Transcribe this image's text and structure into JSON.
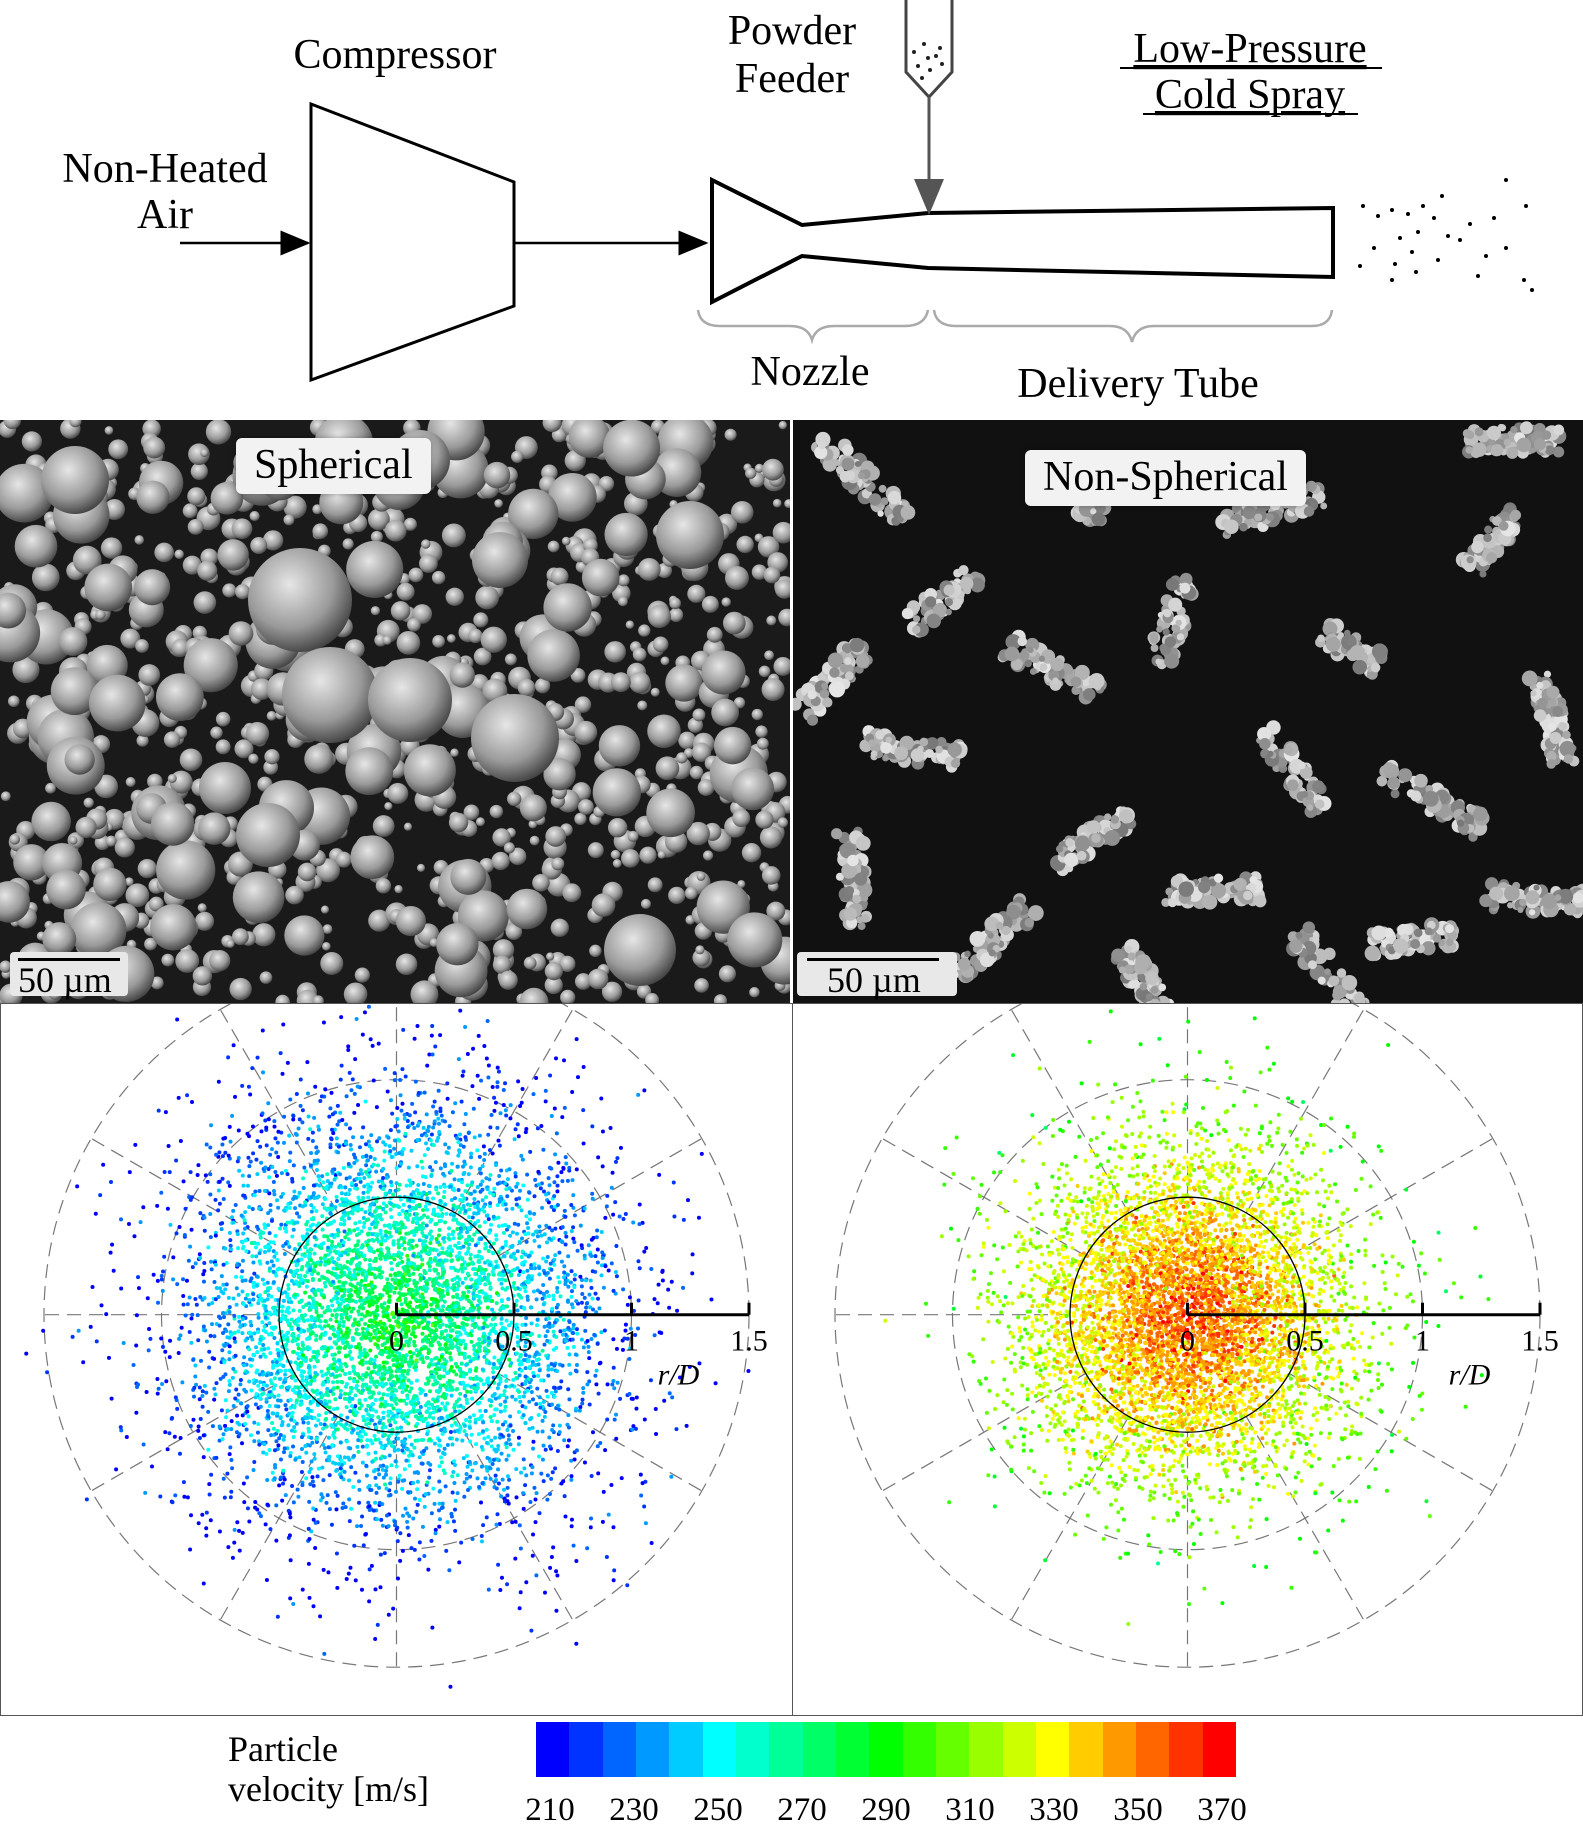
{
  "schematic": {
    "compressor": "Compressor",
    "air_line1": "Non-Heated",
    "air_line2": "Air",
    "feeder_line1": "Powder",
    "feeder_line2": "Feeder",
    "title_line1": "Low-Pressure",
    "title_line2": "Cold Spray",
    "nozzle": "Nozzle",
    "delivery_tube": "Delivery Tube"
  },
  "micrographs": {
    "left": {
      "label": "Spherical",
      "scale": "50 µm"
    },
    "right": {
      "label": "Non-Spherical",
      "scale": "50 µm"
    }
  },
  "chart_data": [
    {
      "type": "scatter",
      "coordinate_system": "polar",
      "xlabel": "r/D",
      "radial_ticks": [
        "0",
        "0.5",
        "1",
        "1.5"
      ],
      "rlim": [
        0,
        1.5
      ],
      "reference_circle_r": 0.5,
      "grid": true,
      "points_color_variable": "Particle velocity [m/s]",
      "distribution": {
        "center": [
          0,
          0
        ],
        "spread_r_D": 0.45,
        "velocity_center": 285,
        "velocity_edge": 215,
        "n_points": 6000
      }
    },
    {
      "type": "scatter",
      "coordinate_system": "polar",
      "xlabel": "r/D",
      "radial_ticks": [
        "0",
        "0.5",
        "1",
        "1.5"
      ],
      "rlim": [
        0,
        1.5
      ],
      "reference_circle_r": 0.5,
      "grid": true,
      "points_color_variable": "Particle velocity [m/s]",
      "distribution": {
        "center": [
          0,
          0
        ],
        "spread_r_D": 0.35,
        "velocity_center": 355,
        "velocity_edge": 295,
        "n_points": 6000
      }
    }
  ],
  "colorbar": {
    "title_line1": "Particle",
    "title_line2": "velocity [m/s]",
    "ticks": [
      "210",
      "230",
      "250",
      "270",
      "290",
      "310",
      "330",
      "350",
      "370"
    ],
    "min": 210,
    "max": 370,
    "colors": [
      "#0000ff",
      "#0033ff",
      "#0066ff",
      "#0099ff",
      "#00ccff",
      "#00ffff",
      "#00ffcc",
      "#00ff99",
      "#00ff66",
      "#00ff33",
      "#00ff00",
      "#33ff00",
      "#66ff00",
      "#99ff00",
      "#ccff00",
      "#ffff00",
      "#ffcc00",
      "#ff9900",
      "#ff6600",
      "#ff3300",
      "#ff0000"
    ]
  }
}
